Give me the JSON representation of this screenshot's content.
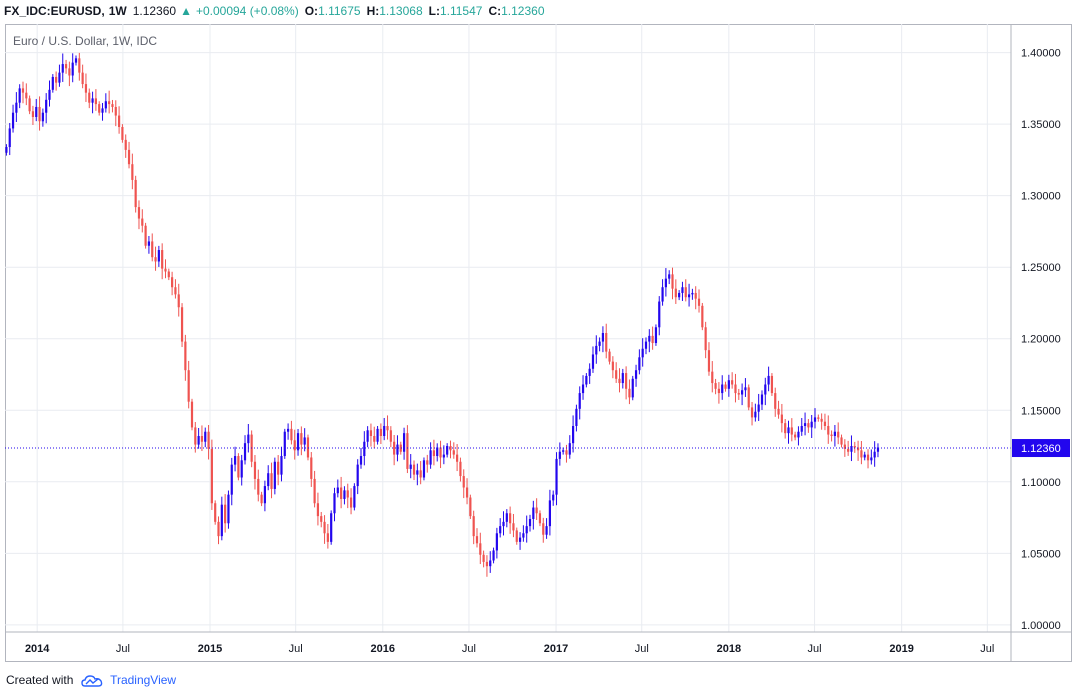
{
  "header": {
    "symbol": "FX_IDC:EURUSD,",
    "interval": "1W",
    "last": "1.12360",
    "change_arrow": "▲",
    "change": "+0.00094 (+0.08%)",
    "open_label": "O:",
    "open": "1.11675",
    "high_label": "H:",
    "high": "1.13068",
    "low_label": "L:",
    "low": "1.11547",
    "close_label": "C:",
    "close": "1.12360"
  },
  "footer": {
    "created_with": "Created with",
    "brand": "TradingView",
    "logo_icon": "tradingview-cloud-icon"
  },
  "chart_data": {
    "type": "candlestick",
    "title": "Euro / U.S. Dollar, 1W, IDC",
    "ylim": [
      0.995,
      1.42
    ],
    "grid": true,
    "price_line": {
      "value": 1.1236,
      "label": "1.12360",
      "color": "#2206ee"
    },
    "colors": {
      "up": "#2206ee",
      "down": "#ef5350",
      "grid": "#e9ecf1",
      "axis_text": "#131722"
    },
    "y_ticks": [
      {
        "value": 1.4,
        "label": "1.40000"
      },
      {
        "value": 1.35,
        "label": "1.35000"
      },
      {
        "value": 1.3,
        "label": "1.30000"
      },
      {
        "value": 1.25,
        "label": "1.25000"
      },
      {
        "value": 1.2,
        "label": "1.20000"
      },
      {
        "value": 1.15,
        "label": "1.15000"
      },
      {
        "value": 1.1,
        "label": "1.10000"
      },
      {
        "value": 1.05,
        "label": "1.05000"
      },
      {
        "value": 1.0,
        "label": "1.00000"
      }
    ],
    "x_ticks": [
      {
        "label": "2014",
        "date": "2014-01-01",
        "bold": true
      },
      {
        "label": "Jul",
        "date": "2014-07-01",
        "bold": false
      },
      {
        "label": "2015",
        "date": "2015-01-01",
        "bold": true
      },
      {
        "label": "Jul",
        "date": "2015-07-01",
        "bold": false
      },
      {
        "label": "2016",
        "date": "2016-01-01",
        "bold": true
      },
      {
        "label": "Jul",
        "date": "2016-07-01",
        "bold": false
      },
      {
        "label": "2017",
        "date": "2017-01-01",
        "bold": true
      },
      {
        "label": "Jul",
        "date": "2017-07-01",
        "bold": false
      },
      {
        "label": "2018",
        "date": "2018-01-01",
        "bold": true
      },
      {
        "label": "Jul",
        "date": "2018-07-01",
        "bold": false
      },
      {
        "label": "2019",
        "date": "2019-01-01",
        "bold": true
      },
      {
        "label": "Jul",
        "date": "2019-07-01",
        "bold": false
      }
    ],
    "x_range": [
      "2013-10-25",
      "2019-08-20"
    ],
    "first_week": "2013-10-28",
    "weekly_close": [
      1.334,
      1.347,
      1.358,
      1.365,
      1.375,
      1.372,
      1.368,
      1.359,
      1.355,
      1.362,
      1.352,
      1.358,
      1.367,
      1.374,
      1.383,
      1.379,
      1.386,
      1.392,
      1.389,
      1.384,
      1.393,
      1.396,
      1.386,
      1.378,
      1.372,
      1.365,
      1.368,
      1.364,
      1.358,
      1.361,
      1.366,
      1.364,
      1.362,
      1.356,
      1.348,
      1.339,
      1.332,
      1.322,
      1.311,
      1.292,
      1.284,
      1.279,
      1.265,
      1.268,
      1.257,
      1.254,
      1.262,
      1.249,
      1.247,
      1.243,
      1.236,
      1.231,
      1.222,
      1.198,
      1.178,
      1.156,
      1.138,
      1.126,
      1.132,
      1.128,
      1.135,
      1.123,
      1.085,
      1.072,
      1.062,
      1.084,
      1.071,
      1.091,
      1.112,
      1.118,
      1.103,
      1.115,
      1.127,
      1.133,
      1.114,
      1.102,
      1.091,
      1.085,
      1.097,
      1.106,
      1.095,
      1.114,
      1.105,
      1.118,
      1.135,
      1.137,
      1.129,
      1.122,
      1.134,
      1.126,
      1.131,
      1.117,
      1.102,
      1.085,
      1.076,
      1.072,
      1.064,
      1.058,
      1.078,
      1.092,
      1.096,
      1.088,
      1.094,
      1.089,
      1.082,
      1.097,
      1.112,
      1.118,
      1.128,
      1.136,
      1.132,
      1.128,
      1.137,
      1.132,
      1.139,
      1.136,
      1.128,
      1.119,
      1.126,
      1.121,
      1.134,
      1.109,
      1.112,
      1.105,
      1.108,
      1.103,
      1.115,
      1.112,
      1.122,
      1.118,
      1.124,
      1.117,
      1.119,
      1.125,
      1.122,
      1.119,
      1.114,
      1.104,
      1.096,
      1.089,
      1.076,
      1.062,
      1.057,
      1.049,
      1.044,
      1.041,
      1.045,
      1.052,
      1.064,
      1.069,
      1.072,
      1.078,
      1.071,
      1.066,
      1.058,
      1.061,
      1.064,
      1.069,
      1.074,
      1.082,
      1.078,
      1.071,
      1.063,
      1.069,
      1.087,
      1.091,
      1.116,
      1.121,
      1.122,
      1.119,
      1.127,
      1.139,
      1.151,
      1.162,
      1.168,
      1.174,
      1.179,
      1.189,
      1.195,
      1.198,
      1.204,
      1.191,
      1.184,
      1.178,
      1.172,
      1.169,
      1.176,
      1.165,
      1.159,
      1.172,
      1.178,
      1.187,
      1.193,
      1.198,
      1.202,
      1.197,
      1.208,
      1.226,
      1.236,
      1.242,
      1.245,
      1.235,
      1.229,
      1.232,
      1.236,
      1.229,
      1.231,
      1.232,
      1.228,
      1.223,
      1.208,
      1.192,
      1.177,
      1.169,
      1.165,
      1.162,
      1.168,
      1.165,
      1.171,
      1.168,
      1.162,
      1.161,
      1.164,
      1.166,
      1.152,
      1.145,
      1.149,
      1.154,
      1.161,
      1.168,
      1.174,
      1.162,
      1.151,
      1.147,
      1.141,
      1.134,
      1.138,
      1.133,
      1.131,
      1.135,
      1.139,
      1.141,
      1.138,
      1.142,
      1.145,
      1.144,
      1.142,
      1.139,
      1.133,
      1.132,
      1.135,
      1.131,
      1.126,
      1.123,
      1.121,
      1.125,
      1.124,
      1.122,
      1.117,
      1.119,
      1.115,
      1.117,
      1.121,
      1.124
    ]
  }
}
